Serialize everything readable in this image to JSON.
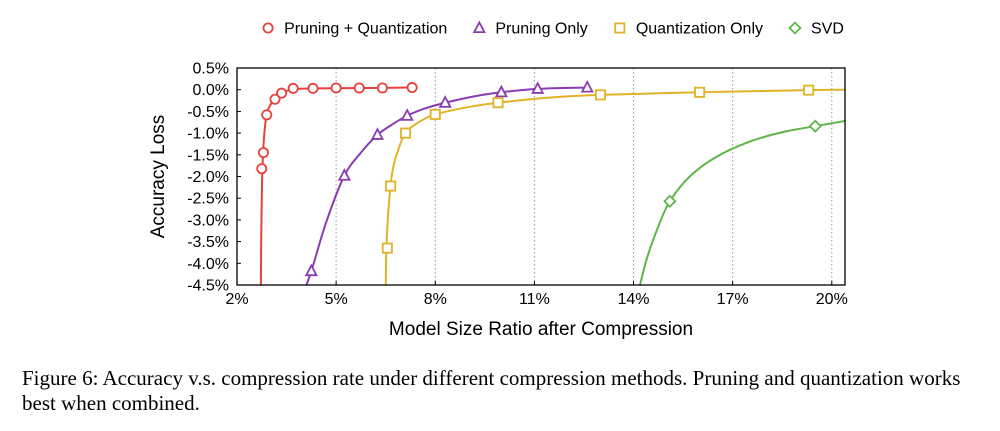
{
  "caption": "Figure 6: Accuracy v.s. compression rate under different compression methods. Pruning and quantization works best when combined.",
  "chart_data": {
    "type": "line",
    "xlabel": "Model Size Ratio after Compression",
    "ylabel": "Accuracy Loss",
    "xlim": [
      2,
      20.4
    ],
    "ylim": [
      -4.5,
      0.5
    ],
    "xticks": [
      2,
      5,
      8,
      11,
      14,
      17,
      20
    ],
    "xtick_labels": [
      "2%",
      "5%",
      "8%",
      "11%",
      "14%",
      "17%",
      "20%"
    ],
    "yticks": [
      0.5,
      0,
      -0.5,
      -1,
      -1.5,
      -2,
      -2.5,
      -3,
      -3.5,
      -4,
      -4.5
    ],
    "ytick_labels": [
      "0.5%",
      "0.0%",
      "-0.5%",
      "-1.0%",
      "-1.5%",
      "-2.0%",
      "-2.5%",
      "-3.0%",
      "-3.5%",
      "-4.0%",
      "-4.5%"
    ],
    "grid": "vertical dotted",
    "legend_position": "top",
    "series": [
      {
        "name": "Pruning + Quantization",
        "color": "#e8403b",
        "marker": "circle",
        "points": [
          [
            2.75,
            -1.82
          ],
          [
            2.8,
            -1.45
          ],
          [
            2.9,
            -0.58
          ],
          [
            3.15,
            -0.22
          ],
          [
            3.35,
            -0.08
          ],
          [
            3.7,
            0.03
          ],
          [
            4.3,
            0.03
          ],
          [
            5.0,
            0.04
          ],
          [
            5.7,
            0.04
          ],
          [
            6.4,
            0.04
          ],
          [
            7.3,
            0.05
          ]
        ],
        "curve": [
          [
            2.72,
            -4.8
          ],
          [
            2.74,
            -3.0
          ],
          [
            2.78,
            -1.6
          ],
          [
            2.88,
            -0.65
          ],
          [
            3.05,
            -0.3
          ],
          [
            3.3,
            -0.1
          ],
          [
            3.7,
            0.01
          ],
          [
            4.5,
            0.03
          ],
          [
            6.0,
            0.04
          ],
          [
            7.3,
            0.05
          ]
        ]
      },
      {
        "name": "Pruning Only",
        "color": "#8b3bb1",
        "marker": "triangle",
        "points": [
          [
            4.25,
            -4.18
          ],
          [
            5.25,
            -1.98
          ],
          [
            6.25,
            -1.04
          ],
          [
            7.15,
            -0.6
          ],
          [
            8.3,
            -0.3
          ],
          [
            10.0,
            -0.06
          ],
          [
            11.1,
            0.02
          ],
          [
            12.6,
            0.05
          ]
        ],
        "curve": [
          [
            3.95,
            -4.8
          ],
          [
            4.25,
            -4.18
          ],
          [
            4.7,
            -3.05
          ],
          [
            5.25,
            -1.98
          ],
          [
            5.75,
            -1.45
          ],
          [
            6.25,
            -1.04
          ],
          [
            6.7,
            -0.8
          ],
          [
            7.15,
            -0.6
          ],
          [
            7.7,
            -0.43
          ],
          [
            8.3,
            -0.3
          ],
          [
            9.2,
            -0.15
          ],
          [
            10.0,
            -0.06
          ],
          [
            11.1,
            0.02
          ],
          [
            12.6,
            0.05
          ]
        ]
      },
      {
        "name": "Quantization Only",
        "color": "#e2b227",
        "marker": "square",
        "points": [
          [
            6.55,
            -3.65
          ],
          [
            6.65,
            -2.22
          ],
          [
            7.1,
            -1.0
          ],
          [
            8.0,
            -0.57
          ],
          [
            9.9,
            -0.3
          ],
          [
            13.0,
            -0.12
          ],
          [
            16.0,
            -0.06
          ],
          [
            19.3,
            -0.01
          ]
        ],
        "curve": [
          [
            6.5,
            -4.8
          ],
          [
            6.52,
            -3.65
          ],
          [
            6.6,
            -2.6
          ],
          [
            6.7,
            -1.9
          ],
          [
            6.85,
            -1.45
          ],
          [
            7.1,
            -1.0
          ],
          [
            7.5,
            -0.75
          ],
          [
            8.0,
            -0.57
          ],
          [
            9.0,
            -0.4
          ],
          [
            9.9,
            -0.3
          ],
          [
            11.5,
            -0.18
          ],
          [
            13.0,
            -0.12
          ],
          [
            16.0,
            -0.06
          ],
          [
            19.3,
            -0.01
          ],
          [
            20.4,
            0.0
          ]
        ]
      },
      {
        "name": "SVD",
        "color": "#5db649",
        "marker": "diamond",
        "points": [
          [
            15.1,
            -2.57
          ],
          [
            19.5,
            -0.84
          ]
        ],
        "curve": [
          [
            14.1,
            -4.8
          ],
          [
            14.4,
            -3.9
          ],
          [
            14.75,
            -3.15
          ],
          [
            15.1,
            -2.57
          ],
          [
            15.7,
            -2.0
          ],
          [
            16.5,
            -1.55
          ],
          [
            17.5,
            -1.2
          ],
          [
            18.5,
            -0.98
          ],
          [
            19.5,
            -0.84
          ],
          [
            20.4,
            -0.72
          ]
        ]
      }
    ]
  }
}
